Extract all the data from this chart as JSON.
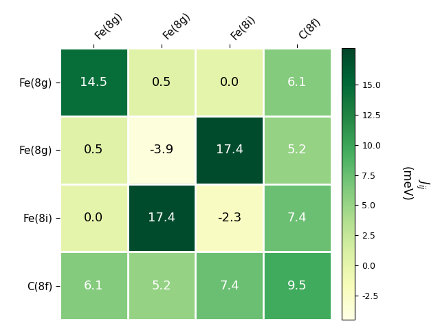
{
  "matrix": [
    [
      14.5,
      0.5,
      0.0,
      6.1
    ],
    [
      0.5,
      -3.9,
      17.4,
      5.2
    ],
    [
      0.0,
      17.4,
      -2.3,
      7.4
    ],
    [
      6.1,
      5.2,
      7.4,
      9.5
    ]
  ],
  "row_labels": [
    "Fe(8g)",
    "Fe(8g)",
    "Fe(8i)",
    "C(8f)"
  ],
  "col_labels": [
    "Fe(8g)",
    "Fe(8g)",
    "Fe(8i)",
    "C(8f)"
  ],
  "cbar_ticks": [
    -2.5,
    0.0,
    2.5,
    5.0,
    7.5,
    10.0,
    12.5,
    15.0
  ],
  "cbar_tick_labels": [
    "-2.5",
    "0.0",
    "2.5",
    "5.0",
    "7.5",
    "10.0",
    "12.5",
    "15.0"
  ],
  "vmin": -4.5,
  "vmax": 18.0,
  "colormap": "YlGn",
  "white_text_threshold": 0.42,
  "figsize": [
    6.4,
    4.8
  ],
  "dpi": 100,
  "cell_fontsize": 13,
  "tick_fontsize": 11,
  "cbar_tick_fontsize": 9,
  "cbar_label_fontsize": 12
}
